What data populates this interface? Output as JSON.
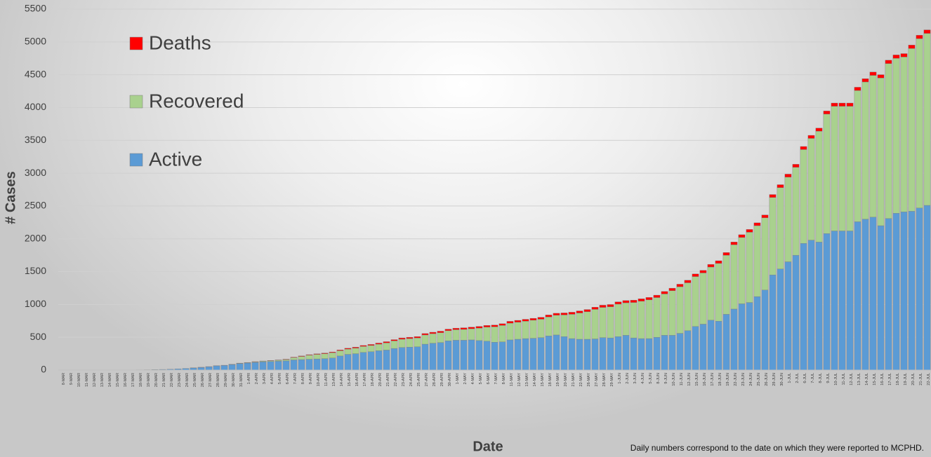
{
  "chart_data": {
    "type": "stacked_bar",
    "y_label": "# Cases",
    "x_label": "Date",
    "footnote": "Daily numbers correspond to the date on which they were reported to MCPHD.",
    "categories": [
      "8-MAR",
      "9-MAR",
      "10-MAR",
      "11-MAR",
      "12-MAR",
      "13-MAR",
      "14-MAR",
      "15-MAR",
      "16-MAR",
      "17-MAR",
      "18-MAR",
      "19-MAR",
      "20-MAR",
      "21-MAR",
      "22-MAR",
      "23-MAR",
      "24-MAR",
      "25-MAR",
      "26-MAR",
      "27-MAR",
      "28-MAR",
      "29-MAR",
      "30-MAR",
      "31-MAR",
      "1-APR",
      "2-APR",
      "3-APR",
      "4-APR",
      "5-APR",
      "6-APR",
      "7-APR",
      "8-APR",
      "9-APR",
      "10-APR",
      "11-APR",
      "13-APR",
      "14-APR",
      "15-APR",
      "16-APR",
      "17-APR",
      "18-APR",
      "20-APR",
      "21-APR",
      "22-APR",
      "23-APR",
      "24-APR",
      "25-APR",
      "27-APR",
      "28-APR",
      "29-APR",
      "30-APR",
      "1-MAY",
      "2-MAY",
      "4-MAY",
      "5-MAY",
      "6-MAY",
      "7-MAY",
      "8-MAY",
      "11-MAY",
      "12-MAY",
      "13-MAY",
      "14-MAY",
      "15-MAY",
      "18-MAY",
      "19-MAY",
      "20-MAY",
      "21-MAY",
      "22-MAY",
      "26-MAY",
      "27-MAY",
      "28-MAY",
      "29-MAY",
      "1-JUN",
      "2-JUN",
      "3-JUN",
      "4-JUN",
      "5-JUN",
      "8-JUN",
      "9-JUN",
      "10-JUN",
      "11-JUN",
      "12-JUN",
      "15-JUN",
      "16-JUN",
      "17-JUN",
      "18-JUN",
      "19-JUN",
      "22-JUN",
      "23-JUN",
      "24-JUN",
      "25-JUN",
      "26-JUN",
      "29-JUN",
      "30-JUN",
      "1-JUL",
      "2-JUL",
      "6-JUL",
      "7-JUL",
      "8-JUL",
      "9-JUL",
      "10-JUL",
      "11-JUL",
      "12-JUL",
      "13-JUL",
      "14-JUL",
      "15-JUL",
      "16-JUL",
      "17-JUL",
      "18-JUL",
      "19-JUL",
      "20-JUL",
      "21-JUL",
      "22-JUL"
    ],
    "series": [
      {
        "name": "Active",
        "color": "#5b9bd5",
        "values": [
          1,
          1,
          1,
          1,
          1,
          1,
          1,
          1,
          2,
          3,
          4,
          5,
          8,
          10,
          13,
          18,
          25,
          33,
          42,
          52,
          65,
          72,
          85,
          100,
          108,
          118,
          125,
          130,
          135,
          140,
          155,
          160,
          165,
          170,
          175,
          185,
          215,
          240,
          250,
          270,
          280,
          295,
          305,
          330,
          345,
          350,
          355,
          395,
          410,
          420,
          445,
          455,
          455,
          460,
          450,
          440,
          425,
          430,
          460,
          470,
          480,
          485,
          495,
          520,
          535,
          510,
          480,
          470,
          470,
          475,
          495,
          490,
          510,
          530,
          490,
          480,
          480,
          500,
          530,
          530,
          560,
          600,
          665,
          700,
          760,
          745,
          850,
          930,
          1010,
          1030,
          1120,
          1220,
          1450,
          1540,
          1650,
          1750,
          1930,
          1980,
          1950,
          2080,
          2120,
          2120,
          2120,
          2260,
          2300,
          2330,
          2200,
          2310,
          2390,
          2410,
          2420,
          2470,
          2510
        ]
      },
      {
        "name": "Recovered",
        "color": "#a9d18e",
        "values": [
          0,
          0,
          0,
          0,
          0,
          0,
          0,
          0,
          0,
          0,
          0,
          0,
          0,
          0,
          0,
          0,
          0,
          0,
          0,
          0,
          0,
          0,
          2,
          3,
          5,
          7,
          10,
          12,
          15,
          20,
          35,
          48,
          62,
          70,
          75,
          80,
          80,
          80,
          85,
          90,
          95,
          100,
          110,
          115,
          125,
          130,
          135,
          140,
          145,
          150,
          155,
          160,
          165,
          170,
          190,
          215,
          235,
          250,
          255,
          260,
          265,
          275,
          280,
          290,
          300,
          330,
          370,
          400,
          420,
          450,
          460,
          475,
          495,
          495,
          540,
          570,
          590,
          605,
          630,
          680,
          710,
          730,
          760,
          780,
          810,
          880,
          900,
          980,
          1010,
          1070,
          1080,
          1100,
          1180,
          1240,
          1290,
          1340,
          1430,
          1550,
          1690,
          1820,
          1900,
          1900,
          1900,
          2000,
          2090,
          2160,
          2250,
          2360,
          2360,
          2360,
          2480,
          2580,
          2620
        ]
      },
      {
        "name": "Deaths",
        "color": "#ff0000",
        "values": [
          0,
          0,
          0,
          0,
          0,
          0,
          0,
          0,
          0,
          0,
          0,
          0,
          0,
          0,
          0,
          0,
          0,
          1,
          1,
          1,
          2,
          2,
          2,
          3,
          3,
          4,
          4,
          5,
          5,
          6,
          7,
          8,
          8,
          9,
          10,
          11,
          12,
          13,
          14,
          15,
          16,
          17,
          18,
          19,
          20,
          20,
          21,
          22,
          22,
          23,
          24,
          24,
          25,
          25,
          26,
          26,
          27,
          27,
          28,
          28,
          29,
          29,
          30,
          30,
          31,
          31,
          32,
          32,
          33,
          33,
          34,
          34,
          35,
          35,
          36,
          36,
          37,
          37,
          38,
          38,
          39,
          39,
          40,
          40,
          41,
          41,
          42,
          42,
          43,
          43,
          44,
          44,
          45,
          45,
          46,
          46,
          47,
          47,
          48,
          48,
          49,
          49,
          49,
          50,
          50,
          51,
          51,
          52,
          52,
          52,
          53,
          53,
          54
        ]
      }
    ],
    "ylim": [
      0,
      5500
    ],
    "yticks": [
      0,
      500,
      1000,
      1500,
      2000,
      2500,
      3000,
      3500,
      4000,
      4500,
      5000,
      5500
    ],
    "grid": true
  }
}
